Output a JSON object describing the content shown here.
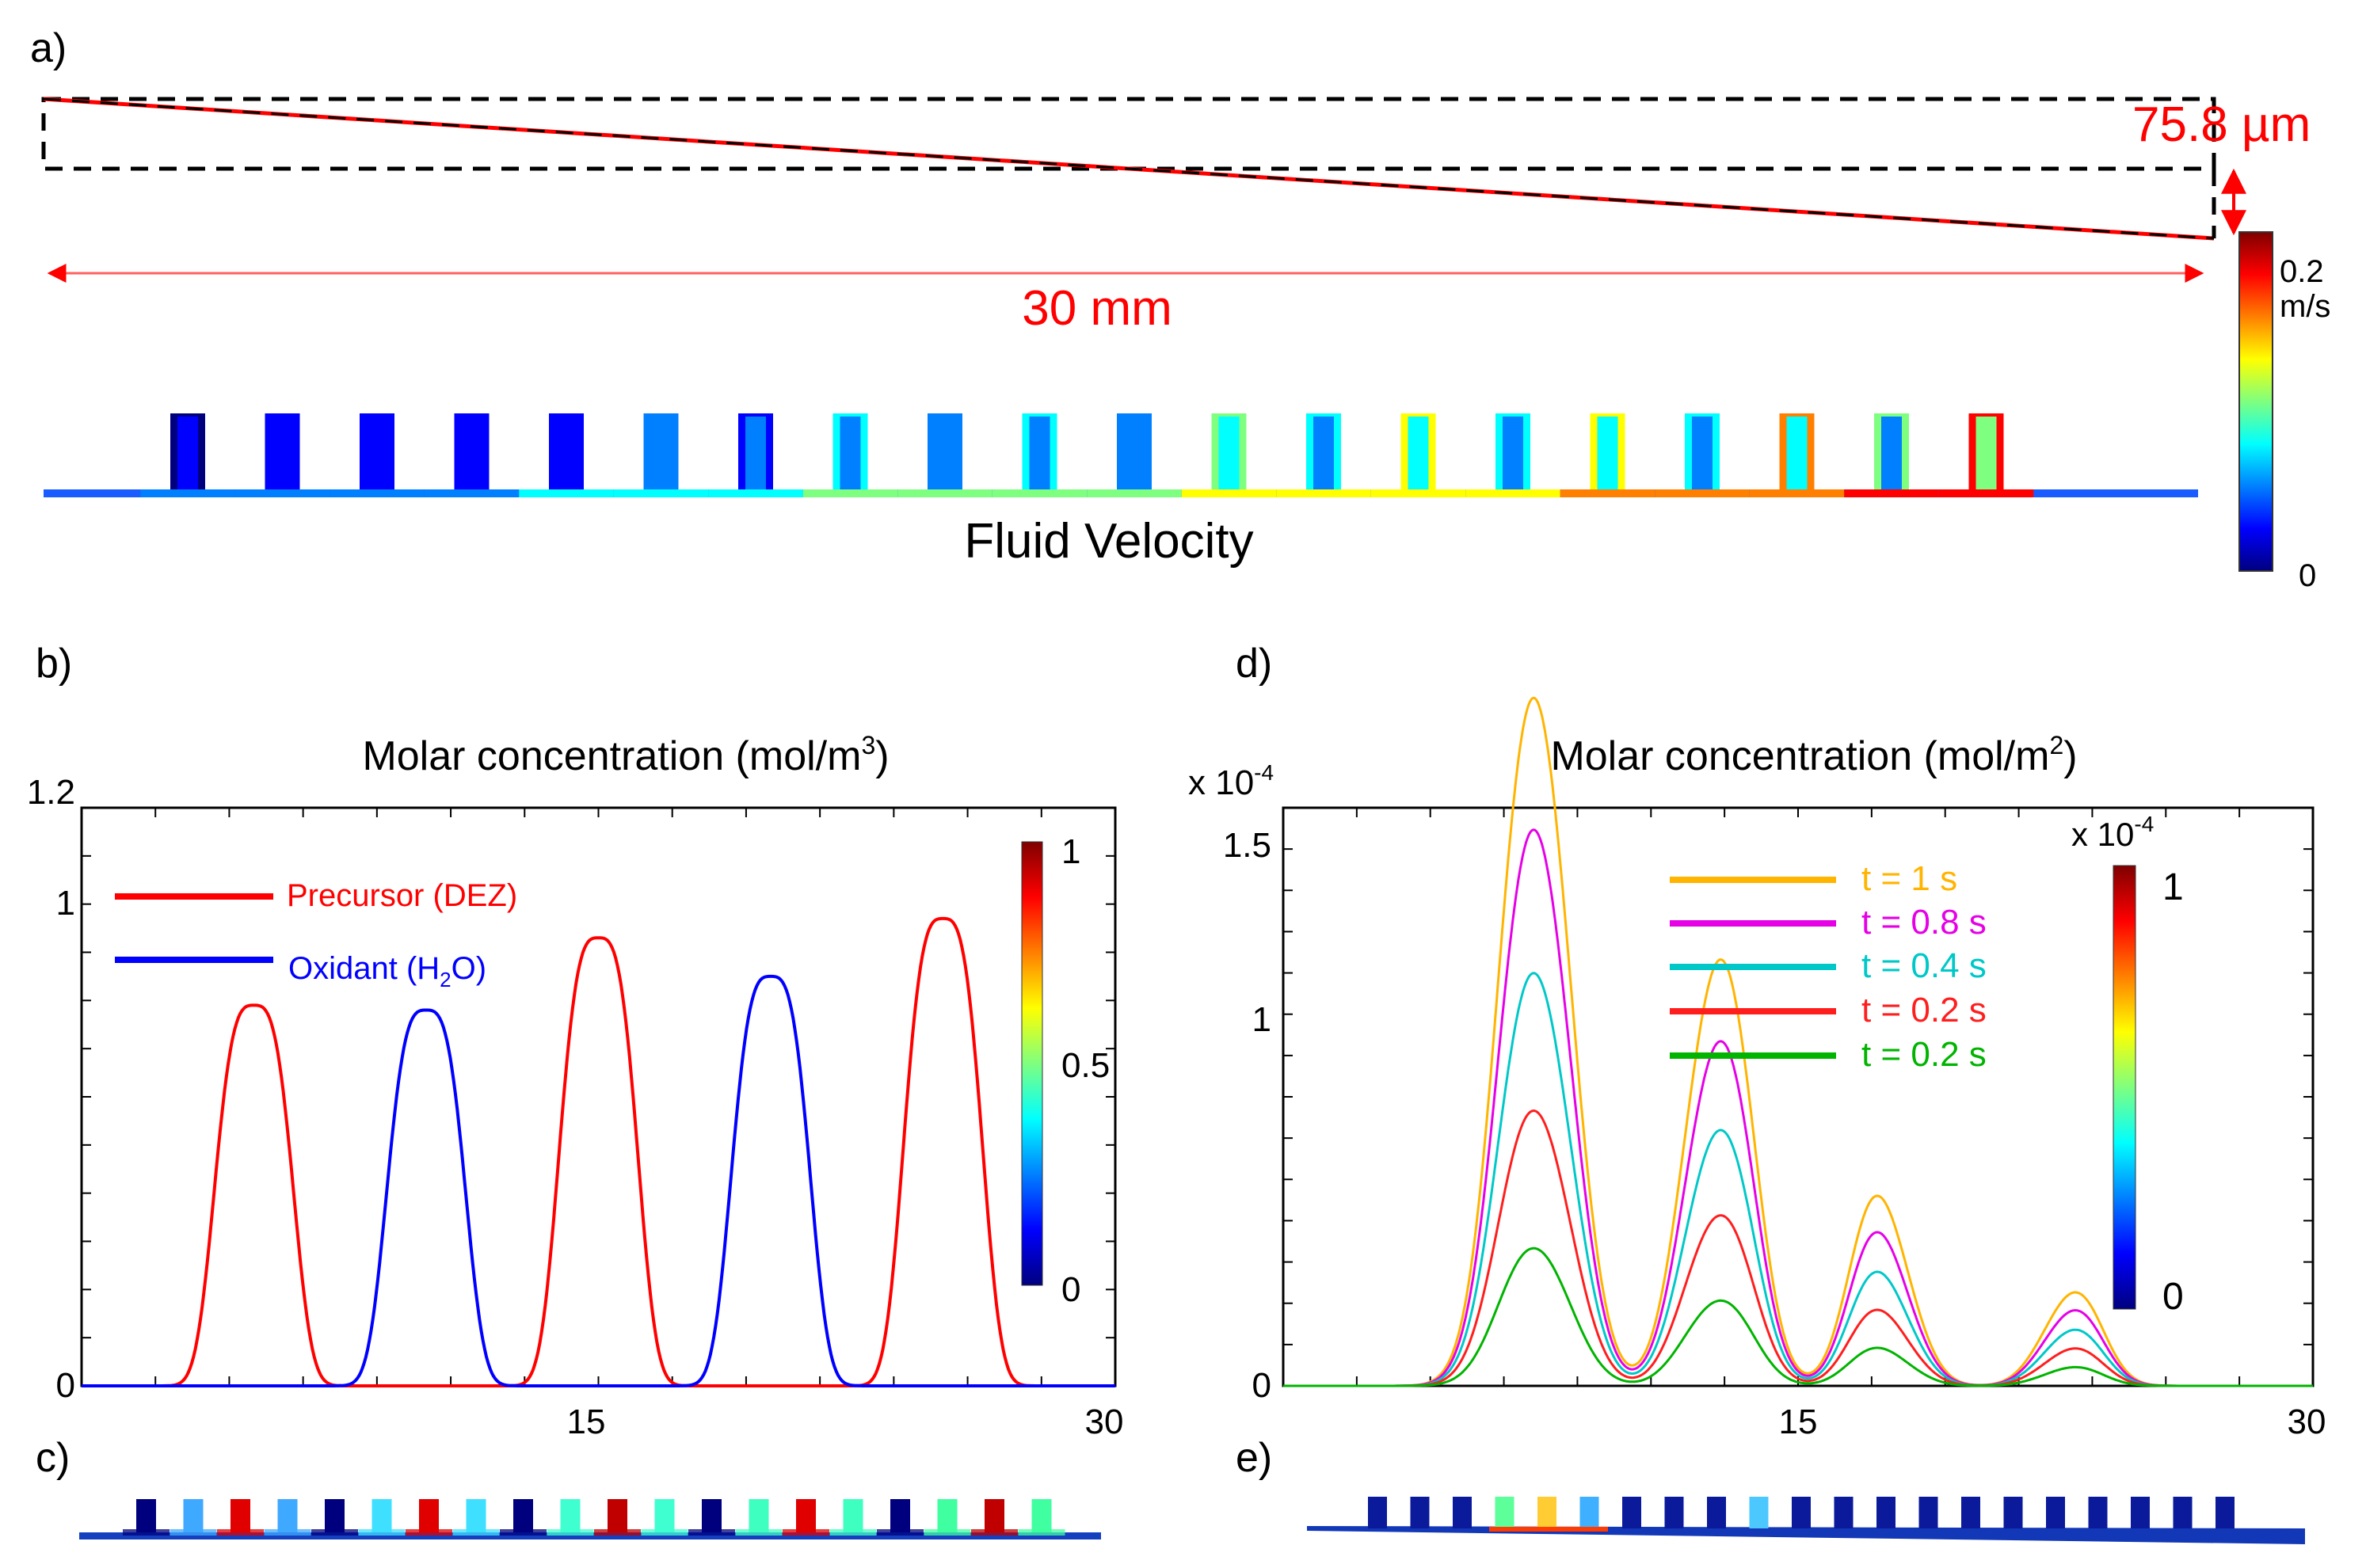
{
  "panel_a": {
    "label": "a)",
    "thickness_label": "75.8 µm",
    "length_label": "30 mm",
    "velocity_title": "Fluid Velocity",
    "colorbar": {
      "max_label": "0.2",
      "unit_label": "m/s",
      "min_label": "0"
    },
    "channel_count": 20
  },
  "panel_c": {
    "label": "c)"
  },
  "panel_e": {
    "label": "e)"
  },
  "colormap": [
    "#00007f",
    "#0000ff",
    "#007fff",
    "#00ffff",
    "#7fff7f",
    "#ffff00",
    "#ff7f00",
    "#ff0000",
    "#7f0000"
  ],
  "chart_data": [
    {
      "panel": "b)",
      "type": "line",
      "title": "Molar concentration (mol/m",
      "title_sup": "3",
      "title_end": ")",
      "xlim": [
        0,
        30
      ],
      "ylim": [
        0,
        1.2
      ],
      "x_ticks": [
        "15",
        "30"
      ],
      "y_ticks": [
        "0",
        "1",
        "1.2"
      ],
      "legend": [
        {
          "name": "Precursor (DEZ)",
          "color": "#ff0000"
        },
        {
          "name": "Oxidant (H",
          "sub": "2",
          "end": "O)",
          "color": "#0000ff"
        }
      ],
      "colorbar": {
        "max_label": "1",
        "mid_label": "0.5",
        "min_label": "0"
      },
      "series": [
        {
          "name": "Precursor (DEZ)",
          "color": "#ff0000",
          "pulses": [
            {
              "center": 5.0,
              "height": 0.79
            },
            {
              "center": 15.0,
              "height": 0.93
            },
            {
              "center": 25.0,
              "height": 0.97
            }
          ]
        },
        {
          "name": "Oxidant (H2O)",
          "color": "#0000ff",
          "pulses": [
            {
              "center": 10.0,
              "height": 0.78
            },
            {
              "center": 20.0,
              "height": 0.85
            }
          ]
        }
      ]
    },
    {
      "panel": "d)",
      "type": "line",
      "title": "Molar concentration (mol/m",
      "title_sup": "2",
      "title_end": ")",
      "multiplier": "x 10",
      "multiplier_exp": "-4",
      "xlim": [
        0,
        30
      ],
      "ylim": [
        0,
        1.5
      ],
      "x_ticks": [
        "15",
        "30"
      ],
      "y_ticks": [
        "0",
        "1",
        "1.5"
      ],
      "colorbar": {
        "multiplier": "x 10",
        "multiplier_exp": "-4",
        "max_label": "1",
        "min_label": "0"
      },
      "groups": [
        {
          "peaks": [
            {
              "center": 6.9,
              "rel": 1.0
            },
            {
              "center": 7.9,
              "rel": 0.76
            }
          ],
          "width": 0.85
        },
        {
          "peaks": [
            {
              "center": 12.1,
              "rel": 0.46
            },
            {
              "center": 13.1,
              "rel": 0.66
            }
          ],
          "width": 0.78
        },
        {
          "peaks": [
            {
              "center": 17.1,
              "rel": 0.33
            },
            {
              "center": 18.0,
              "rel": 0.15
            }
          ],
          "width": 0.72
        },
        {
          "peaks": [
            {
              "center": 22.4,
              "rel": 0.08
            },
            {
              "center": 23.3,
              "rel": 0.16
            }
          ],
          "width": 0.7
        }
      ],
      "series": [
        {
          "name": "t = 1 s",
          "color": "#ffb400",
          "scale": 1.2
        },
        {
          "name": "t = 0.8 s",
          "color": "#e600e6",
          "scale": 0.97
        },
        {
          "name": "t = 0.4 s",
          "color": "#00c8c8",
          "scale": 0.72
        },
        {
          "name": "t = 0.2 s",
          "color": "#ff1e1e",
          "scale": 0.48
        },
        {
          "name": "t = 0.2 s",
          "color": "#00b400",
          "scale": 0.24
        }
      ]
    }
  ]
}
